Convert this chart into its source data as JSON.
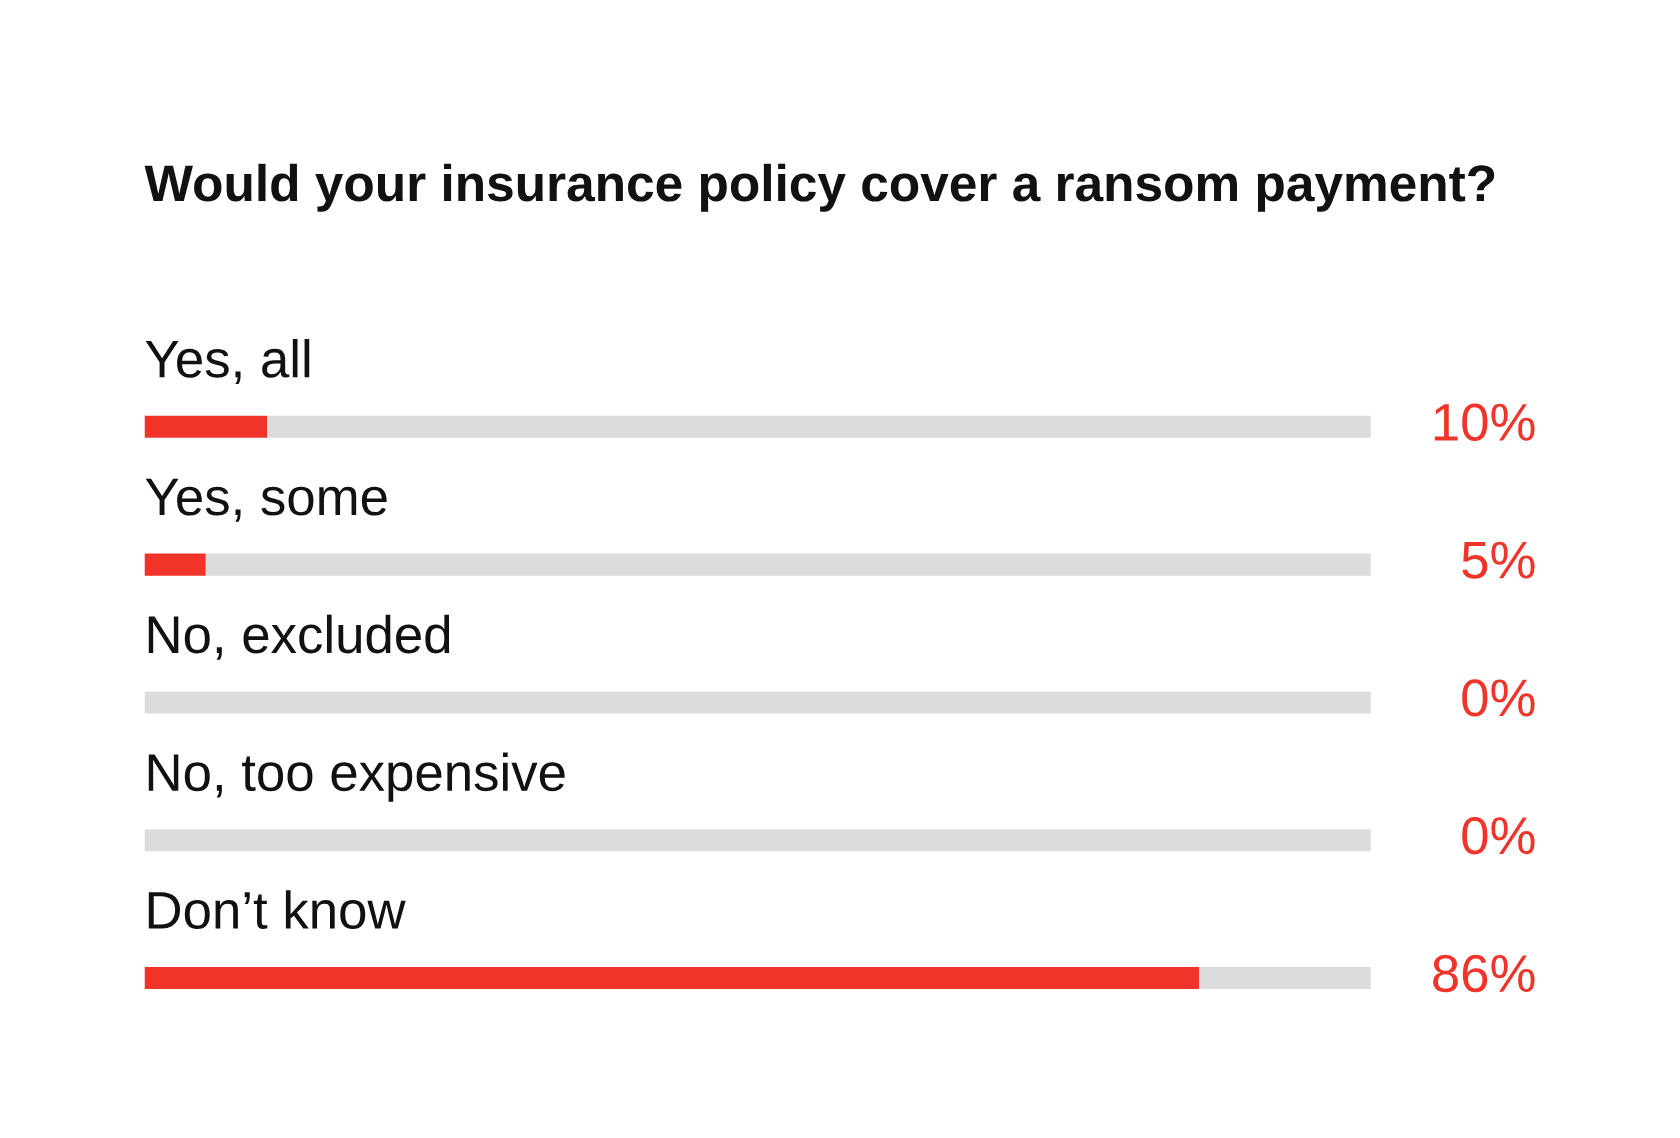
{
  "chart_data": {
    "type": "bar",
    "orientation": "horizontal",
    "stacked": true,
    "title": "Would your insurance policy cover a ransom payment?",
    "categories": [
      "Yes, all",
      "Yes, some",
      "No, excluded",
      "No, too expensive",
      "Don’t know"
    ],
    "series": [
      {
        "color": "#f0342a",
        "values": [
          10,
          5,
          0,
          0,
          86
        ],
        "value_labels": [
          "10%",
          "5%",
          "0%",
          "0%",
          "86%"
        ]
      },
      {
        "color": "#dcdcdc",
        "values": [
          90,
          95,
          100,
          100,
          14
        ]
      }
    ],
    "xlim": [
      0,
      100
    ]
  }
}
